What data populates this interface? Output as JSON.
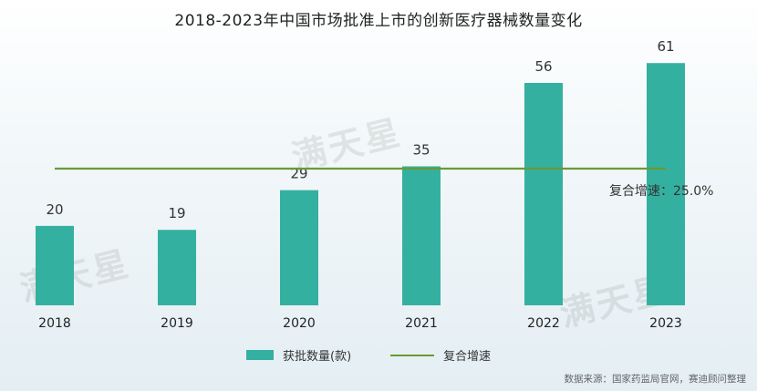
{
  "title": "2018-2023年中国市场批准上市的创新医疗器械数量变化",
  "watermark": "满天星",
  "chart_data": {
    "type": "bar",
    "categories": [
      "2018",
      "2019",
      "2020",
      "2021",
      "2022",
      "2023"
    ],
    "series": [
      {
        "name": "获批数量(款)",
        "type": "bar",
        "values": [
          20,
          19,
          29,
          35,
          56,
          61
        ],
        "color": "#34b0a1"
      }
    ],
    "growth_line": {
      "name": "复合增速",
      "value_label": "复合增速：25.0%",
      "color": "#6a9a34"
    },
    "ylim": [
      0,
      70
    ],
    "grid": false,
    "legend": "bottom-center"
  },
  "source": "数据来源：国家药监局官网，赛迪顾问整理"
}
